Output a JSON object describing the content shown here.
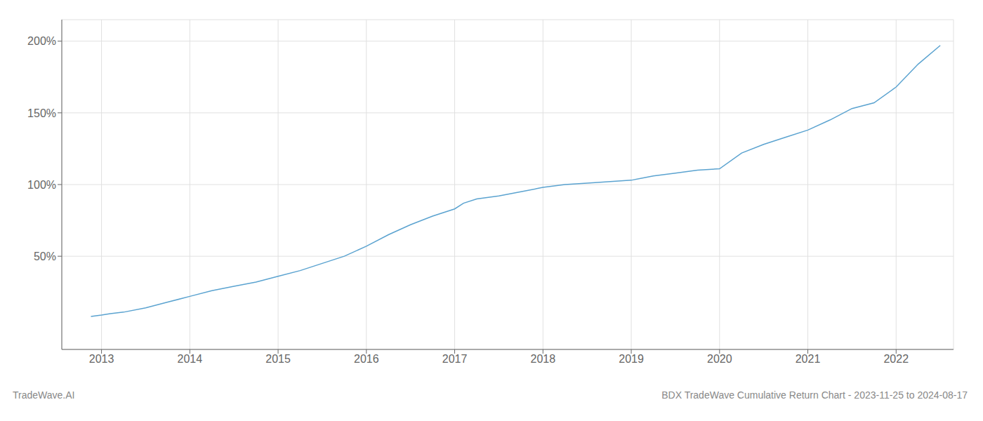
{
  "chart_data": {
    "type": "line",
    "title": "BDX TradeWave Cumulative Return Chart - 2023-11-25 to 2024-08-17",
    "annotations": [
      "TradeWave.AI"
    ],
    "color": "#5ba3d0",
    "grid": true,
    "x": [
      2012.88,
      2013.0,
      2013.1,
      2013.25,
      2013.5,
      2013.75,
      2014.0,
      2014.25,
      2014.5,
      2014.75,
      2015.0,
      2015.25,
      2015.5,
      2015.75,
      2016.0,
      2016.25,
      2016.5,
      2016.75,
      2017.0,
      2017.1,
      2017.25,
      2017.5,
      2017.75,
      2018.0,
      2018.25,
      2018.5,
      2019.0,
      2019.25,
      2019.5,
      2019.75,
      2020.0,
      2020.25,
      2020.5,
      2020.75,
      2021.0,
      2021.25,
      2021.5,
      2021.75,
      2022.0,
      2022.25,
      2022.5
    ],
    "values": [
      8,
      9,
      10,
      11,
      14,
      18,
      22,
      26,
      29,
      32,
      36,
      40,
      45,
      50,
      57,
      65,
      72,
      78,
      83,
      87,
      90,
      92,
      95,
      98,
      100,
      101,
      103,
      106,
      108,
      110,
      111,
      122,
      128,
      133,
      138,
      145,
      153,
      157,
      168,
      184,
      197
    ],
    "xlim": [
      2012.55,
      2022.65
    ],
    "xticks": [
      2013,
      2014,
      2015,
      2016,
      2017,
      2018,
      2019,
      2020,
      2021,
      2022
    ],
    "ylim": [
      -15,
      215
    ],
    "yticks": [
      {
        "value": 50,
        "label": "50%"
      },
      {
        "value": 100,
        "label": "100%"
      },
      {
        "value": 150,
        "label": "150%"
      },
      {
        "value": 200,
        "label": "200%"
      }
    ]
  }
}
